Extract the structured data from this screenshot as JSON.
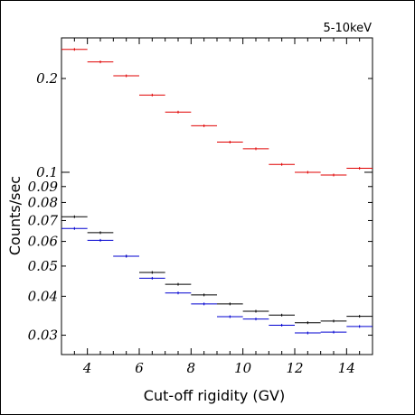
{
  "chart_data": {
    "type": "scatter",
    "title": "",
    "annotation": "5-10keV",
    "xlabel": "Cut-off rigidity  (GV)",
    "ylabel": "Counts/sec",
    "xlim": [
      3,
      15
    ],
    "ylim": [
      0.026,
      0.27
    ],
    "y_scale": "log",
    "grid": false,
    "x_ticks": [
      4,
      6,
      8,
      10,
      12,
      14
    ],
    "x_tick_labels": [
      "4",
      "6",
      "8",
      "10",
      "12",
      "14"
    ],
    "y_ticks": [
      0.03,
      0.04,
      0.05,
      0.06,
      0.07,
      0.08,
      0.09,
      0.1,
      0.2
    ],
    "y_tick_labels": [
      "0.03",
      "0.04",
      "0.05",
      "0.06",
      "0.07",
      "0.08",
      "0.09",
      "0.1",
      "0.2"
    ],
    "x_bin_halfwidth": 0.5,
    "series": [
      {
        "color": "#e00000",
        "x": [
          3.5,
          4.5,
          5.5,
          6.5,
          7.5,
          8.5,
          9.5,
          10.5,
          11.5,
          12.5,
          13.5,
          14.5
        ],
        "y": [
          0.248,
          0.226,
          0.204,
          0.177,
          0.156,
          0.141,
          0.125,
          0.119,
          0.106,
          0.1,
          0.098,
          0.103
        ]
      },
      {
        "color": "#000000",
        "x": [
          3.5,
          4.5,
          5.5,
          6.5,
          7.5,
          8.5,
          9.5,
          10.5,
          11.5,
          12.5,
          13.5,
          14.5
        ],
        "y": [
          0.072,
          0.064,
          0.0538,
          0.0477,
          0.0437,
          0.0404,
          0.0378,
          0.0358,
          0.0348,
          0.0329,
          0.0333,
          0.0345
        ]
      },
      {
        "color": "#0000d0",
        "x": [
          3.5,
          4.5,
          5.5,
          6.5,
          7.5,
          8.5,
          9.5,
          10.5,
          11.5,
          12.5,
          13.5,
          14.5
        ],
        "y": [
          0.066,
          0.0605,
          0.0538,
          0.0457,
          0.041,
          0.0378,
          0.0344,
          0.0338,
          0.0323,
          0.0305,
          0.0307,
          0.032
        ]
      }
    ]
  }
}
